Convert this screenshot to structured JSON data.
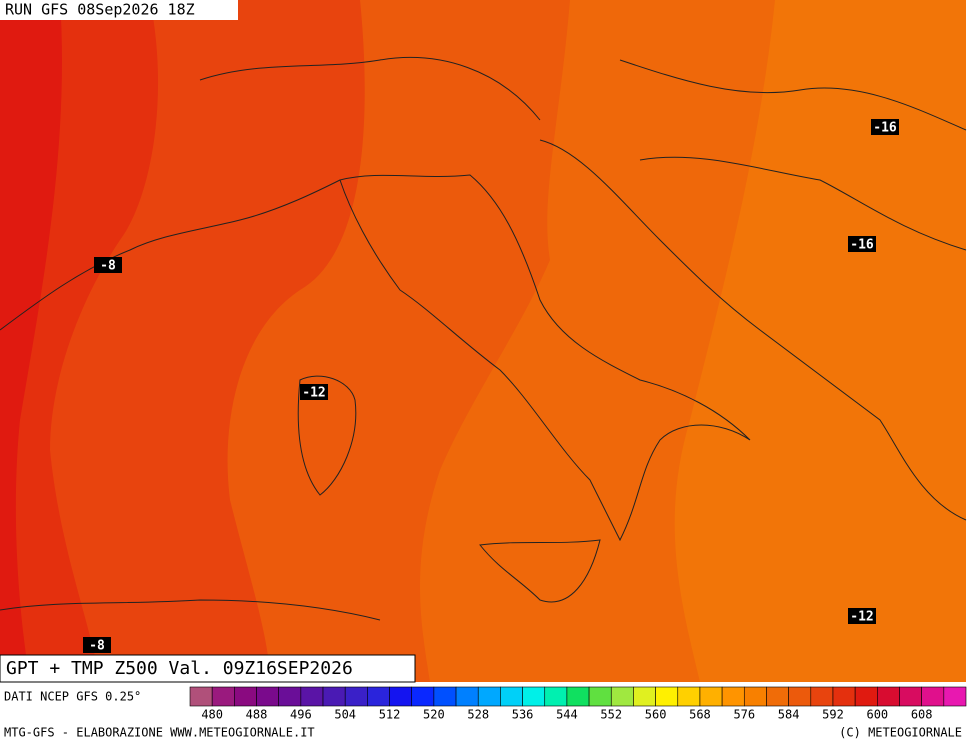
{
  "header": {
    "run": "RUN GFS 08Sep2026 18Z",
    "title": "GPT + TMP Z500 Val. 09Z16SEP2026",
    "source": "DATI NCEP GFS 0.25°"
  },
  "contour_labels": [
    "-8",
    "-12",
    "-16",
    "-16",
    "-12",
    "-8"
  ],
  "colorbar": {
    "ticks": [
      480,
      488,
      496,
      504,
      512,
      520,
      528,
      536,
      544,
      552,
      560,
      568,
      576,
      584,
      592,
      600,
      608
    ],
    "colors": [
      "#b0507a",
      "#9a1a7e",
      "#8a0a80",
      "#7a0a8c",
      "#6a0e98",
      "#5a14a6",
      "#4a1ab4",
      "#3a20c8",
      "#2a24dc",
      "#1414f0",
      "#0a28ff",
      "#0050ff",
      "#0080ff",
      "#00a8ff",
      "#00d0f8",
      "#00f0e8",
      "#00f0b0",
      "#10e060",
      "#60e040",
      "#a0e840",
      "#e0f020",
      "#fff000",
      "#ffd000",
      "#ffb000",
      "#ff9400",
      "#f88000",
      "#f06c08",
      "#ec5a0c",
      "#e8440e",
      "#e4300e",
      "#e01a10",
      "#d80c30",
      "#d80c60",
      "#e0108c",
      "#e818b0"
    ]
  },
  "footer": {
    "left": "MTG-GFS - ELABORAZIONE WWW.METEOGIORNALE.IT",
    "right": "(C) METEOGIORNALE"
  }
}
